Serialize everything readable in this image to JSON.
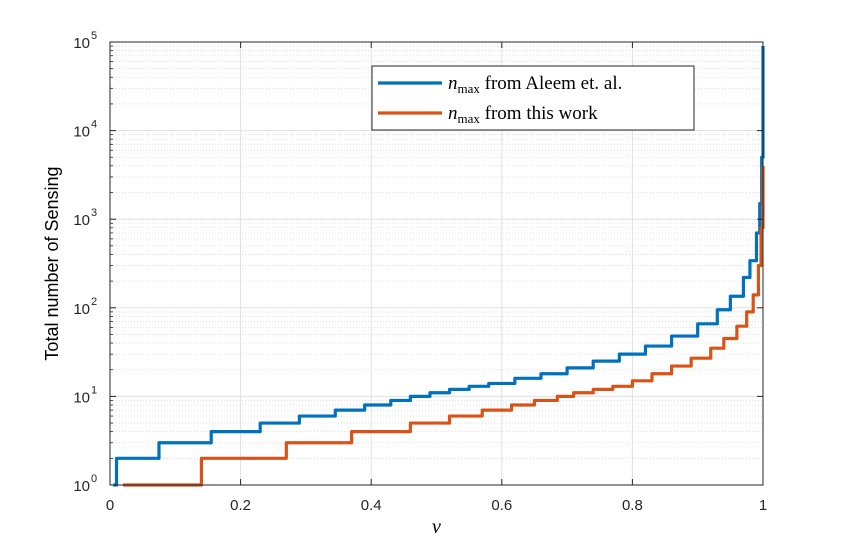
{
  "chart_data": {
    "type": "line",
    "xlabel": "ν",
    "ylabel": "Total number of Sensing",
    "xlim": [
      0,
      1
    ],
    "ylim": [
      1,
      100000
    ],
    "yscale": "log",
    "grid": true,
    "minor_grid": true,
    "legend_position": "top-right",
    "x_ticks": [
      0,
      0.2,
      0.4,
      0.6,
      0.8,
      1
    ],
    "x_tick_labels": [
      "0",
      "0.2",
      "0.4",
      "0.6",
      "0.8",
      "1"
    ],
    "y_ticks": [
      1,
      10,
      100,
      1000,
      10000,
      100000
    ],
    "y_tick_labels": [
      {
        "base": "10",
        "exp": "0"
      },
      {
        "base": "10",
        "exp": "1"
      },
      {
        "base": "10",
        "exp": "2"
      },
      {
        "base": "10",
        "exp": "3"
      },
      {
        "base": "10",
        "exp": "4"
      },
      {
        "base": "10",
        "exp": "5"
      }
    ],
    "series": [
      {
        "name_symbol": "n",
        "name_sub": "max",
        "name_rest": " from Aleem et. al.",
        "color": "#0072BD",
        "x": [
          0.005,
          0.01,
          0.075,
          0.155,
          0.23,
          0.29,
          0.345,
          0.39,
          0.43,
          0.46,
          0.49,
          0.52,
          0.55,
          0.58,
          0.62,
          0.66,
          0.7,
          0.74,
          0.78,
          0.82,
          0.86,
          0.9,
          0.93,
          0.95,
          0.97,
          0.98,
          0.99,
          0.995,
          0.998,
          1.0
        ],
        "y": [
          1,
          2,
          3,
          4,
          5,
          6,
          7,
          8,
          9,
          10,
          11,
          12,
          13,
          14,
          16,
          18,
          21,
          25,
          30,
          37,
          48,
          66,
          95,
          135,
          220,
          340,
          700,
          1500,
          5000,
          90000
        ]
      },
      {
        "name_symbol": "n",
        "name_sub": "max",
        "name_rest": " from this work",
        "color": "#D95319",
        "x": [
          0.02,
          0.14,
          0.27,
          0.37,
          0.46,
          0.52,
          0.57,
          0.615,
          0.65,
          0.685,
          0.71,
          0.74,
          0.77,
          0.8,
          0.83,
          0.86,
          0.89,
          0.92,
          0.94,
          0.96,
          0.975,
          0.985,
          0.993,
          0.997,
          1.0
        ],
        "y": [
          1,
          2,
          3,
          4,
          5,
          6,
          7,
          8,
          9,
          10,
          11,
          12,
          13,
          15,
          18,
          22,
          27,
          35,
          45,
          62,
          90,
          140,
          300,
          800,
          4000
        ]
      }
    ]
  }
}
